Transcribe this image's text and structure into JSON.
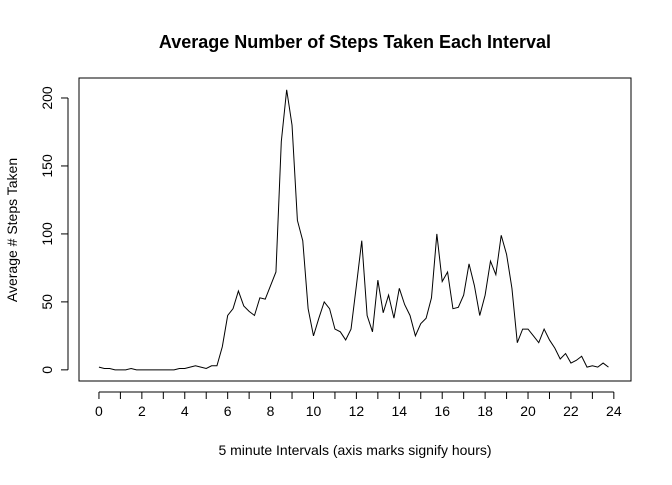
{
  "chart_data": {
    "type": "line",
    "title": "Average Number of Steps Taken Each Interval",
    "xlabel": "5 minute Intervals (axis marks signify hours)",
    "ylabel": "Average # Steps Taken",
    "x": [
      0,
      0.25,
      0.5,
      0.75,
      1,
      1.25,
      1.5,
      1.75,
      2,
      2.25,
      2.5,
      2.75,
      3,
      3.25,
      3.5,
      3.75,
      4,
      4.25,
      4.5,
      4.75,
      5,
      5.25,
      5.5,
      5.75,
      6,
      6.25,
      6.5,
      6.75,
      7,
      7.25,
      7.5,
      7.75,
      8,
      8.25,
      8.5,
      8.75,
      9,
      9.25,
      9.5,
      9.75,
      10,
      10.25,
      10.5,
      10.75,
      11,
      11.25,
      11.5,
      11.75,
      12,
      12.25,
      12.5,
      12.75,
      13,
      13.25,
      13.5,
      13.75,
      14,
      14.25,
      14.5,
      14.75,
      15,
      15.25,
      15.5,
      15.75,
      16,
      16.25,
      16.5,
      16.75,
      17,
      17.25,
      17.5,
      17.75,
      18,
      18.25,
      18.5,
      18.75,
      19,
      19.25,
      19.5,
      19.75,
      20,
      20.25,
      20.5,
      20.75,
      21,
      21.25,
      21.5,
      21.75,
      22,
      22.25,
      22.5,
      22.75,
      23,
      23.25,
      23.5,
      23.75
    ],
    "series": [
      {
        "color": "#000000",
        "values": [
          2,
          1,
          1,
          0,
          0,
          0,
          1,
          0,
          0,
          0,
          0,
          0,
          0,
          0,
          0,
          1,
          1,
          2,
          3,
          2,
          1,
          3,
          3,
          17,
          40,
          45,
          58,
          47,
          43,
          40,
          53,
          52,
          62,
          72,
          168,
          206,
          180,
          110,
          95,
          45,
          25,
          38,
          50,
          45,
          30,
          28,
          22,
          30,
          62,
          95,
          40,
          28,
          66,
          42,
          55,
          38,
          60,
          48,
          40,
          25,
          34,
          38,
          53,
          100,
          65,
          72,
          45,
          46,
          55,
          78,
          62,
          40,
          55,
          80,
          70,
          99,
          85,
          60,
          20,
          30,
          30,
          25,
          20,
          30,
          22,
          16,
          8,
          12,
          5,
          7,
          10,
          2,
          3,
          2,
          5,
          2
        ]
      }
    ],
    "xlim": [
      -0.93,
      24.8
    ],
    "ylim": [
      -8.2,
      214.7
    ],
    "xticks": [
      0,
      2,
      4,
      6,
      8,
      10,
      12,
      14,
      16,
      18,
      20,
      22,
      24
    ],
    "xminorticks": [
      1,
      3,
      5,
      7,
      9,
      11,
      13,
      15,
      17,
      19,
      21,
      23
    ],
    "yticks": [
      0,
      50,
      100,
      150,
      200
    ]
  }
}
